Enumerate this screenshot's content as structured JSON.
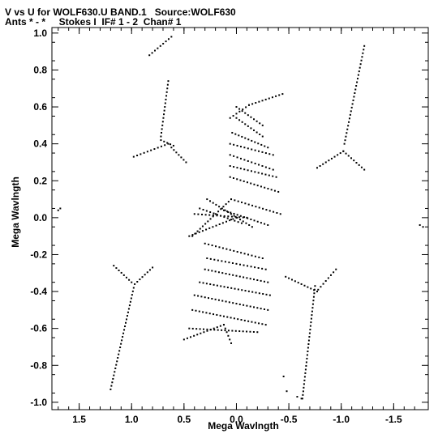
{
  "header": {
    "title_line1": "V vs U for WOLF630.U BAND.1   Source:WOLF630",
    "title_line2": "Ants * - *     Stokes I  IF# 1 - 2  Chan# 1"
  },
  "chart_data": {
    "type": "scatter",
    "title": "V vs U for WOLF630.U BAND.1   Source:WOLF630",
    "subtitle": "Ants * - *     Stokes I  IF# 1 - 2  Chan# 1",
    "xlabel": "Mega Wavlngth",
    "ylabel": "Mega Wavlngth",
    "xlim": [
      1.76,
      -1.83
    ],
    "ylim": [
      -1.04,
      1.03
    ],
    "x_reversed": true,
    "xticks": [
      1.5,
      1.0,
      0.5,
      0.0,
      -0.5,
      -1.0,
      -1.5
    ],
    "xtick_labels": [
      "1.5",
      "1.0",
      "0.5",
      "0.0",
      "-0.5",
      "-1.0",
      "-1.5"
    ],
    "yticks": [
      1.0,
      0.8,
      0.6,
      0.4,
      0.2,
      0.0,
      -0.2,
      -0.4,
      -0.6,
      -0.8,
      -1.0
    ],
    "ytick_labels": [
      "1.0",
      "0.8",
      "0.6",
      "0.4",
      "0.2",
      "0.0",
      "-0.2",
      "-0.4",
      "-0.6",
      "-0.8",
      "-1.0"
    ],
    "grid": false,
    "marker_color": "#000000",
    "tracks": [
      {
        "from": [
          0.62,
          0.98
        ],
        "to": [
          0.83,
          0.88
        ]
      },
      {
        "from": [
          0.65,
          0.74
        ],
        "to": [
          0.72,
          0.44
        ]
      },
      {
        "from": [
          0.72,
          0.42
        ],
        "to": [
          0.6,
          0.39
        ]
      },
      {
        "from": [
          0.65,
          0.4
        ],
        "to": [
          0.98,
          0.33
        ]
      },
      {
        "from": [
          0.62,
          0.38
        ],
        "to": [
          0.48,
          0.3
        ]
      },
      {
        "from": [
          -1.22,
          0.93
        ],
        "to": [
          -1.03,
          0.4
        ]
      },
      {
        "from": [
          -1.02,
          0.36
        ],
        "to": [
          -0.77,
          0.27
        ]
      },
      {
        "from": [
          -1.02,
          0.36
        ],
        "to": [
          -1.22,
          0.26
        ]
      },
      {
        "from": [
          1.17,
          -0.26
        ],
        "to": [
          1.0,
          -0.35
        ]
      },
      {
        "from": [
          0.97,
          -0.36
        ],
        "to": [
          0.8,
          -0.27
        ]
      },
      {
        "from": [
          0.98,
          -0.38
        ],
        "to": [
          1.2,
          -0.93
        ]
      },
      {
        "from": [
          -0.77,
          -0.4
        ],
        "to": [
          -0.47,
          -0.32
        ]
      },
      {
        "from": [
          -0.78,
          -0.39
        ],
        "to": [
          -0.95,
          -0.28
        ]
      },
      {
        "from": [
          -0.75,
          -0.37
        ],
        "to": [
          -0.63,
          -0.98
        ]
      },
      {
        "from": [
          -0.44,
          0.67
        ],
        "to": [
          -0.12,
          0.61
        ]
      },
      {
        "from": [
          0.06,
          0.54
        ],
        "to": [
          -0.12,
          0.61
        ]
      },
      {
        "from": [
          0.0,
          0.6
        ],
        "to": [
          -0.25,
          0.5
        ]
      },
      {
        "from": [
          0.0,
          0.54
        ],
        "to": [
          -0.25,
          0.44
        ]
      },
      {
        "from": [
          0.04,
          0.46
        ],
        "to": [
          -0.3,
          0.38
        ]
      },
      {
        "from": [
          0.06,
          0.4
        ],
        "to": [
          -0.35,
          0.34
        ]
      },
      {
        "from": [
          0.06,
          0.34
        ],
        "to": [
          -0.35,
          0.26
        ]
      },
      {
        "from": [
          0.06,
          0.28
        ],
        "to": [
          -0.38,
          0.22
        ]
      },
      {
        "from": [
          0.06,
          0.22
        ],
        "to": [
          -0.4,
          0.14
        ]
      },
      {
        "from": [
          0.05,
          0.1
        ],
        "to": [
          -0.42,
          0.02
        ]
      },
      {
        "from": [
          0.4,
          0.02
        ],
        "to": [
          -0.1,
          0.0
        ]
      },
      {
        "from": [
          0.35,
          0.05
        ],
        "to": [
          -0.05,
          -0.03
        ]
      },
      {
        "from": [
          0.28,
          0.1
        ],
        "to": [
          -0.15,
          -0.05
        ]
      },
      {
        "from": [
          0.45,
          -0.1
        ],
        "to": [
          0.0,
          0.0
        ]
      },
      {
        "from": [
          0.42,
          -0.1
        ],
        "to": [
          0.05,
          0.1
        ]
      },
      {
        "from": [
          -0.3,
          -0.04
        ],
        "to": [
          0.12,
          0.04
        ]
      },
      {
        "from": [
          0.3,
          -0.14
        ],
        "to": [
          -0.25,
          -0.22
        ]
      },
      {
        "from": [
          0.28,
          -0.22
        ],
        "to": [
          -0.28,
          -0.28
        ]
      },
      {
        "from": [
          0.3,
          -0.28
        ],
        "to": [
          -0.3,
          -0.35
        ]
      },
      {
        "from": [
          0.35,
          -0.35
        ],
        "to": [
          -0.32,
          -0.42
        ]
      },
      {
        "from": [
          0.4,
          -0.42
        ],
        "to": [
          -0.3,
          -0.5
        ]
      },
      {
        "from": [
          0.42,
          -0.5
        ],
        "to": [
          -0.28,
          -0.58
        ]
      },
      {
        "from": [
          0.45,
          -0.6
        ],
        "to": [
          -0.2,
          -0.62
        ]
      },
      {
        "from": [
          0.5,
          -0.66
        ],
        "to": [
          0.12,
          -0.58
        ]
      },
      {
        "from": [
          0.12,
          -0.58
        ],
        "to": [
          0.05,
          -0.68
        ]
      }
    ],
    "extra_points": [
      [
        1.7,
        0.04
      ],
      [
        1.68,
        0.05
      ],
      [
        -1.75,
        -0.04
      ],
      [
        -1.78,
        -0.05
      ],
      [
        -0.45,
        -0.86
      ],
      [
        -0.48,
        -0.94
      ],
      [
        -0.58,
        -0.97
      ],
      [
        -0.62,
        -0.98
      ]
    ]
  }
}
